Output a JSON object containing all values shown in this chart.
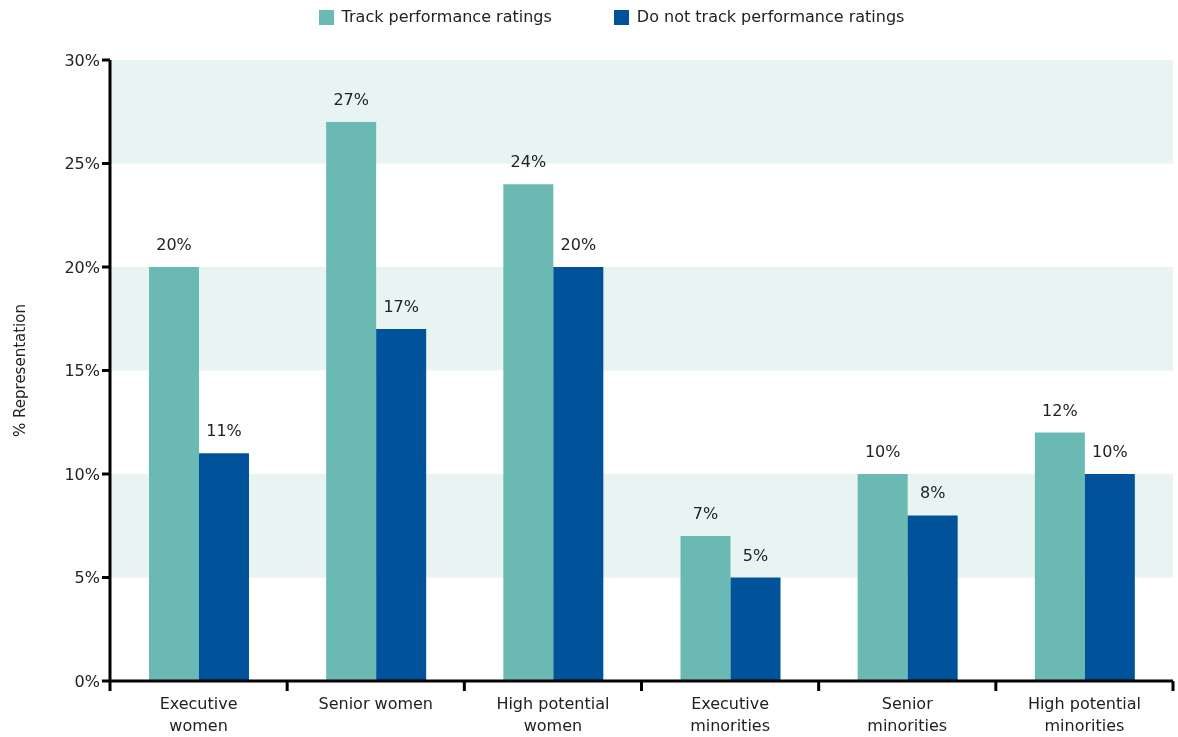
{
  "chart_data": {
    "type": "bar",
    "categories": [
      "Executive\nwomen",
      "Senior women",
      "High potential\nwomen",
      "Executive\nminorities",
      "Senior\nminorities",
      "High potential\nminorities"
    ],
    "series": [
      {
        "name": "Track performance ratings",
        "color": "#6ab9b2",
        "values": [
          20,
          27,
          24,
          7,
          10,
          12
        ],
        "value_labels": [
          "20%",
          "27%",
          "24%",
          "7%",
          "10%",
          "12%"
        ]
      },
      {
        "name": "Do not track performance ratings",
        "color": "#00529b",
        "values": [
          11,
          17,
          20,
          5,
          8,
          10
        ],
        "value_labels": [
          "11%",
          "17%",
          "20%",
          "5%",
          "8%",
          "10%"
        ]
      }
    ],
    "ylabel": "% Representation",
    "ylim": [
      0,
      30
    ],
    "yticks": [
      {
        "value": 0,
        "label": "0%"
      },
      {
        "value": 5,
        "label": "5%"
      },
      {
        "value": 10,
        "label": "10%"
      },
      {
        "value": 15,
        "label": "15%"
      },
      {
        "value": 20,
        "label": "20%"
      },
      {
        "value": 25,
        "label": "25%"
      },
      {
        "value": 30,
        "label": "30%"
      }
    ],
    "bands": [
      {
        "axis": "y",
        "from": 5,
        "to": 10,
        "color": "#e8f4f2"
      },
      {
        "axis": "y",
        "from": 15,
        "to": 20,
        "color": "#e8f4f2"
      },
      {
        "axis": "y",
        "from": 25,
        "to": 30,
        "color": "#e8f4f2"
      }
    ],
    "grid": false,
    "legend": "top"
  }
}
